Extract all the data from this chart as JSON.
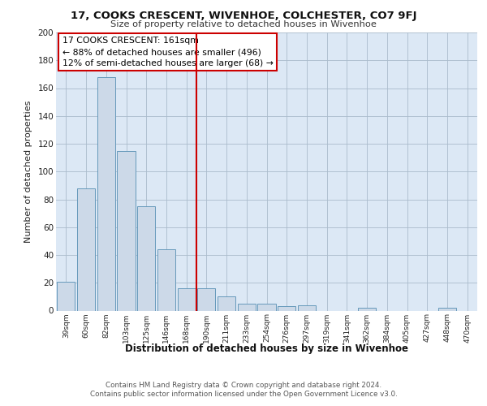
{
  "title1": "17, COOKS CRESCENT, WIVENHOE, COLCHESTER, CO7 9FJ",
  "title2": "Size of property relative to detached houses in Wivenhoe",
  "xlabel": "Distribution of detached houses by size in Wivenhoe",
  "ylabel": "Number of detached properties",
  "categories": [
    "39sqm",
    "60sqm",
    "82sqm",
    "103sqm",
    "125sqm",
    "146sqm",
    "168sqm",
    "190sqm",
    "211sqm",
    "233sqm",
    "254sqm",
    "276sqm",
    "297sqm",
    "319sqm",
    "341sqm",
    "362sqm",
    "384sqm",
    "405sqm",
    "427sqm",
    "448sqm",
    "470sqm"
  ],
  "values": [
    21,
    88,
    168,
    115,
    75,
    44,
    16,
    16,
    10,
    5,
    5,
    3,
    4,
    0,
    0,
    2,
    0,
    0,
    0,
    2,
    0
  ],
  "bar_color": "#ccd9e8",
  "bar_edge_color": "#6699bb",
  "vline_x": 6.5,
  "vline_color": "#cc0000",
  "annotation_title": "17 COOKS CRESCENT: 161sqm",
  "annotation_line1": "← 88% of detached houses are smaller (496)",
  "annotation_line2": "12% of semi-detached houses are larger (68) →",
  "annotation_box_color": "#ffffff",
  "annotation_box_edge": "#cc0000",
  "ylim": [
    0,
    200
  ],
  "yticks": [
    0,
    20,
    40,
    60,
    80,
    100,
    120,
    140,
    160,
    180,
    200
  ],
  "footnote1": "Contains HM Land Registry data © Crown copyright and database right 2024.",
  "footnote2": "Contains public sector information licensed under the Open Government Licence v3.0.",
  "bg_color": "#ffffff",
  "plot_bg_color": "#dce8f5"
}
